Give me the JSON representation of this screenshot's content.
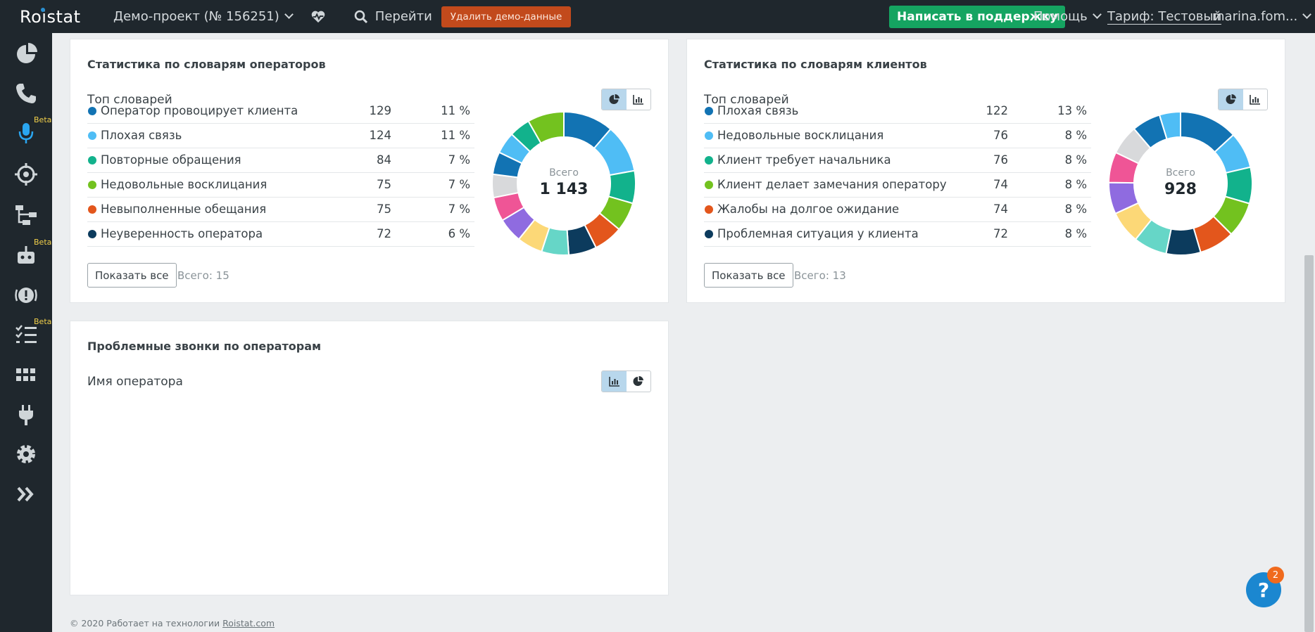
{
  "topbar": {
    "logo": "Roistat",
    "project": "Демо-проект  (№ 156251)",
    "goto": "Перейти",
    "delete_demo": "Удалить демо-данные",
    "support": "Написать в поддержку",
    "help": "Помощь",
    "tariff": "Тариф: Тестовый",
    "user": "marina.fom..."
  },
  "sidebar": {
    "items": [
      {
        "icon": "pie-chart-icon"
      },
      {
        "icon": "phone-icon"
      },
      {
        "icon": "microphone-icon",
        "badge": "Beta"
      },
      {
        "icon": "target-icon"
      },
      {
        "icon": "flow-icon"
      },
      {
        "icon": "robot-icon",
        "badge": "Beta"
      },
      {
        "icon": "alert-icon"
      },
      {
        "icon": "checklist-icon",
        "badge": "Beta"
      },
      {
        "icon": "apps-icon"
      },
      {
        "icon": "plug-icon"
      },
      {
        "icon": "gear-icon"
      },
      {
        "icon": "expand-icon"
      }
    ]
  },
  "operators_panel": {
    "title": "Статистика по словарям операторов",
    "subtitle": "Топ словарей",
    "rows": [
      {
        "name": "Оператор провоцирует клиента",
        "count": "129",
        "pct": "11 %",
        "color": "#1273b3"
      },
      {
        "name": "Плохая связь",
        "count": "124",
        "pct": "11 %",
        "color": "#4fbdf5"
      },
      {
        "name": "Повторные обращения",
        "count": "84",
        "pct": "7 %",
        "color": "#12b28c"
      },
      {
        "name": "Недовольные восклицания",
        "count": "75",
        "pct": "7 %",
        "color": "#73c21f"
      },
      {
        "name": "Невыполненные обещания",
        "count": "75",
        "pct": "7 %",
        "color": "#e3561c"
      },
      {
        "name": "Неуверенность оператора",
        "count": "72",
        "pct": "6 %",
        "color": "#0c3b5d"
      }
    ],
    "show_all": "Показать все",
    "total_count": "Всего: 15",
    "donut_label": "Всего",
    "donut_total": "1 143"
  },
  "clients_panel": {
    "title": "Статистика по словарям клиентов",
    "subtitle": "Топ словарей",
    "rows": [
      {
        "name": "Плохая связь",
        "count": "122",
        "pct": "13 %",
        "color": "#1273b3"
      },
      {
        "name": "Недовольные восклицания",
        "count": "76",
        "pct": "8 %",
        "color": "#4fbdf5"
      },
      {
        "name": "Клиент требует начальника",
        "count": "76",
        "pct": "8 %",
        "color": "#12b28c"
      },
      {
        "name": "Клиент делает замечания оператору",
        "count": "74",
        "pct": "8 %",
        "color": "#73c21f"
      },
      {
        "name": "Жалобы на долгое ожидание",
        "count": "74",
        "pct": "8 %",
        "color": "#e3561c"
      },
      {
        "name": "Проблемная ситуация у клиента",
        "count": "72",
        "pct": "8 %",
        "color": "#0c3b5d"
      }
    ],
    "show_all": "Показать все",
    "total_count": "Всего: 13",
    "donut_label": "Всего",
    "donut_total": "928"
  },
  "problem_panel": {
    "title": "Проблемные звонки по операторам",
    "subtitle": "Имя оператора"
  },
  "chart_data": [
    {
      "type": "pie",
      "categories": [
        "Оператор провоцирует клиента",
        "Плохая связь",
        "Повторные обращения",
        "Недовольные восклицания",
        "Невыполненные обещания",
        "Неуверенность оператора",
        "",
        "",
        "",
        "",
        "",
        "",
        "",
        "",
        ""
      ],
      "values": [
        129,
        124,
        84,
        75,
        75,
        72,
        70,
        66,
        64,
        62,
        60,
        58,
        56,
        54,
        94
      ],
      "colors": [
        "#1273b3",
        "#4fbdf5",
        "#12b28c",
        "#73c21f",
        "#e3561c",
        "#0c3b5d",
        "#66d6c7",
        "#fcd877",
        "#8f6be0",
        "#ef5596",
        "#d8d9db",
        "#1273b3",
        "#4fbdf5",
        "#12b28c",
        "#73c21f"
      ],
      "title": ""
    },
    {
      "type": "pie",
      "categories": [
        "Плохая связь",
        "Недовольные восклицания",
        "Клиент требует начальника",
        "Клиент делает замечания оператору",
        "Жалобы на долгое ожидание",
        "Проблемная ситуация у клиента",
        "",
        "",
        "",
        "",
        "",
        "",
        ""
      ],
      "values": [
        122,
        76,
        76,
        74,
        74,
        72,
        70,
        68,
        66,
        64,
        62,
        60,
        44
      ],
      "colors": [
        "#1273b3",
        "#4fbdf5",
        "#12b28c",
        "#73c21f",
        "#e3561c",
        "#0c3b5d",
        "#66d6c7",
        "#fcd877",
        "#8f6be0",
        "#ef5596",
        "#d8d9db",
        "#1273b3",
        "#4fbdf5"
      ],
      "title": ""
    }
  ]
}
